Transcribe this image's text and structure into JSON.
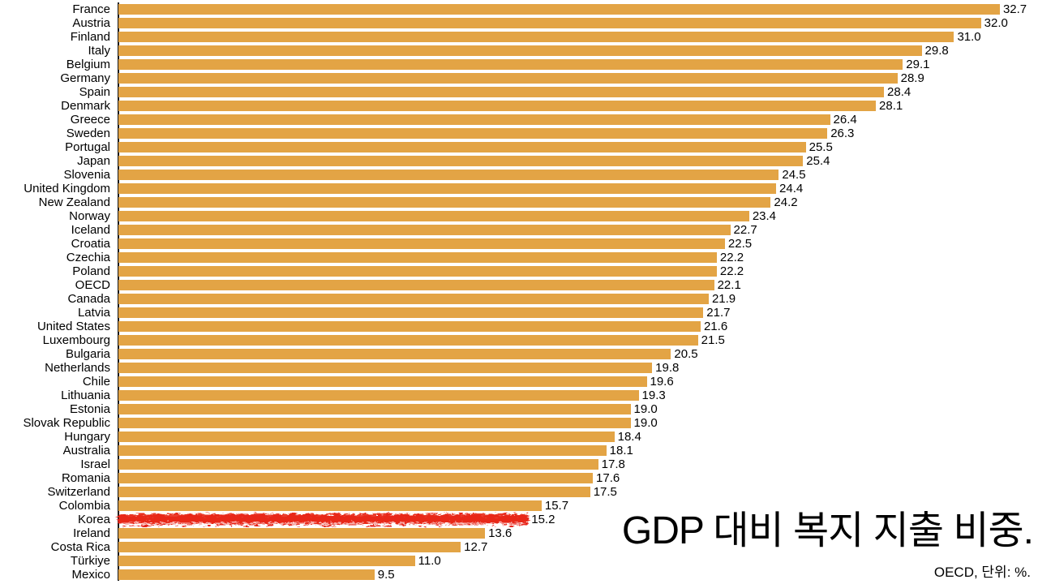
{
  "title": "GDP 대비 복지 지출 비중.",
  "source_note": "OECD, 단위: %.",
  "colors": {
    "bar": "#E3A445",
    "highlight": "#E8281A",
    "axis": "#1A1A1A",
    "text": "#000000",
    "background": "#FFFFFF"
  },
  "chart_data": {
    "type": "bar",
    "orientation": "horizontal",
    "title": "GDP 대비 복지 지출 비중.",
    "source": "OECD, 단위: %.",
    "unit": "%",
    "xlim": [
      0,
      34
    ],
    "grid": false,
    "value_labels": true,
    "legend": false,
    "highlight_category": "Korea",
    "highlight_style": "red-crayon-scribble",
    "categories": [
      "France",
      "Austria",
      "Finland",
      "Italy",
      "Belgium",
      "Germany",
      "Spain",
      "Denmark",
      "Greece",
      "Sweden",
      "Portugal",
      "Japan",
      "Slovenia",
      "United Kingdom",
      "New Zealand",
      "Norway",
      "Iceland",
      "Croatia",
      "Czechia",
      "Poland",
      "OECD",
      "Canada",
      "Latvia",
      "United States",
      "Luxembourg",
      "Bulgaria",
      "Netherlands",
      "Chile",
      "Lithuania",
      "Estonia",
      "Slovak Republic",
      "Hungary",
      "Australia",
      "Israel",
      "Romania",
      "Switzerland",
      "Colombia",
      "Korea",
      "Ireland",
      "Costa Rica",
      "Türkiye",
      "Mexico"
    ],
    "values": [
      32.7,
      32.0,
      31.0,
      29.8,
      29.1,
      28.9,
      28.4,
      28.1,
      26.4,
      26.3,
      25.5,
      25.4,
      24.5,
      24.4,
      24.2,
      23.4,
      22.7,
      22.5,
      22.2,
      22.2,
      22.1,
      21.9,
      21.7,
      21.6,
      21.5,
      20.5,
      19.8,
      19.6,
      19.3,
      19.0,
      19.0,
      18.4,
      18.1,
      17.8,
      17.6,
      17.5,
      15.7,
      15.2,
      13.6,
      12.7,
      11.0,
      9.5
    ]
  }
}
